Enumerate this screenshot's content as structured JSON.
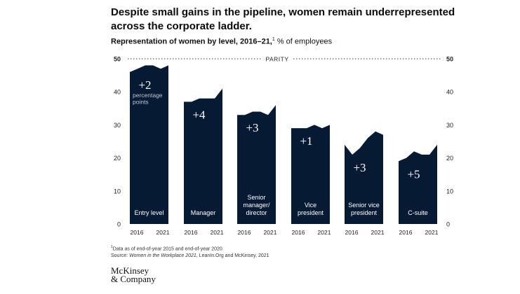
{
  "headline": "Despite small gains in the pipeline, women remain underrepresented across the corporate ladder.",
  "subtitle": {
    "bold": "Representation of women by level, 2016–21,",
    "note_marker": "1",
    "rest": " % of employees"
  },
  "chart_data": {
    "type": "area",
    "title": "Representation of women by level, 2016–21",
    "ylabel": "% of employees",
    "ylim": [
      0,
      50
    ],
    "yticks": [
      0,
      10,
      20,
      30,
      40,
      50
    ],
    "parity_label": "PARITY",
    "parity_value": 50,
    "x_labels": [
      "2016",
      "2021"
    ],
    "years": [
      2016,
      2017,
      2018,
      2019,
      2020,
      2021
    ],
    "series": [
      {
        "name": "Entry level",
        "values": [
          46,
          47,
          48,
          48,
          47,
          48
        ],
        "change": "+2",
        "change_note": "percentage points"
      },
      {
        "name": "Manager",
        "values": [
          37,
          37,
          38,
          38,
          38,
          41
        ],
        "change": "+4",
        "change_note": ""
      },
      {
        "name": "Senior manager/ director",
        "values": [
          33,
          33,
          34,
          34,
          33,
          36
        ],
        "change": "+3",
        "change_note": ""
      },
      {
        "name": "Vice president",
        "values": [
          29,
          29,
          29,
          30,
          29,
          30
        ],
        "change": "+1",
        "change_note": ""
      },
      {
        "name": "Senior vice president",
        "values": [
          24,
          21,
          23,
          26,
          28,
          27
        ],
        "change": "+3",
        "change_note": ""
      },
      {
        "name": "C-suite",
        "values": [
          19,
          20,
          22,
          21,
          21,
          24
        ],
        "change": "+5",
        "change_note": ""
      }
    ]
  },
  "footnote": {
    "marker": "1",
    "line1": "Data as of end-of-year 2015 and end-of-year 2020.",
    "source_prefix": "Source: ",
    "source_title": "Women in the Workplace 2021",
    "source_rest": ", LeanIn.Org and McKinsey, 2021"
  },
  "logo": {
    "line1": "McKinsey",
    "line2": "& Company"
  },
  "colors": {
    "area": "#061a33",
    "text_light": "#ffffff",
    "muted": "#bfc6d0"
  }
}
